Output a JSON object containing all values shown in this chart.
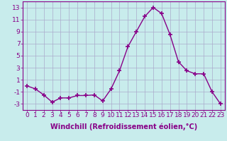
{
  "x": [
    0,
    1,
    2,
    3,
    4,
    5,
    6,
    7,
    8,
    9,
    10,
    11,
    12,
    13,
    14,
    15,
    16,
    17,
    18,
    19,
    20,
    21,
    22,
    23
  ],
  "y": [
    0.0,
    -0.5,
    -1.5,
    -2.7,
    -2.0,
    -2.0,
    -1.6,
    -1.6,
    -1.5,
    -2.5,
    -0.5,
    2.5,
    6.5,
    9.0,
    11.5,
    13.0,
    12.0,
    8.5,
    4.0,
    2.5,
    2.0,
    2.0,
    -1.0,
    -3.0
  ],
  "line_color": "#880088",
  "marker": "+",
  "marker_size": 5,
  "xlabel": "Windchill (Refroidissement éolien,°C)",
  "xlabel_fontsize": 7,
  "ylabel_ticks": [
    -3,
    -1,
    1,
    3,
    5,
    7,
    9,
    11,
    13
  ],
  "xtick_labels": [
    "0",
    "1",
    "2",
    "3",
    "4",
    "5",
    "6",
    "7",
    "8",
    "9",
    "10",
    "11",
    "12",
    "13",
    "14",
    "15",
    "16",
    "17",
    "18",
    "19",
    "20",
    "21",
    "22",
    "23"
  ],
  "ylim": [
    -4,
    14
  ],
  "xlim": [
    -0.5,
    23.5
  ],
  "bg_color": "#c8ecec",
  "grid_color": "#aaaacc",
  "tick_fontsize": 6.5,
  "line_width": 1.0
}
